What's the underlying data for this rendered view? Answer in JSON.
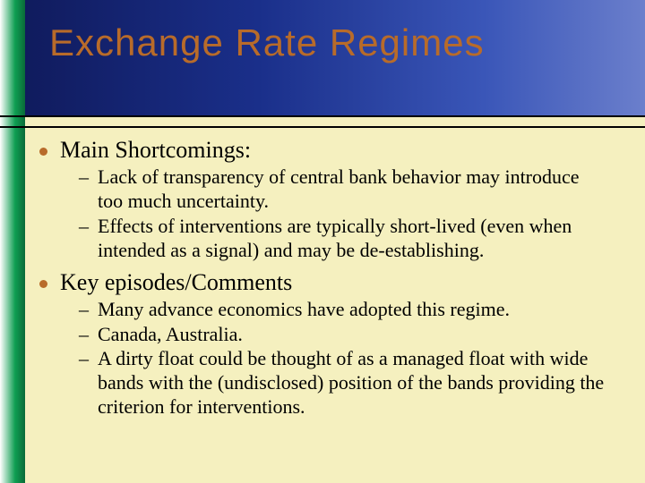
{
  "title": "Exchange Rate Regimes",
  "colors": {
    "accent": "#b86b2a",
    "content_bg": "#f5f0bf",
    "title_gradient_start": "#0f1959",
    "title_gradient_end": "#6b7fcc",
    "sidebar_gradient_mid": "#0f9e52"
  },
  "bullets": [
    {
      "label": "Main Shortcomings:",
      "subs": [
        "Lack of transparency of central bank behavior may introduce too much uncertainty.",
        "Effects of interventions are typically short-lived (even when intended as a signal) and may be de-establishing."
      ]
    },
    {
      "label": "Key episodes/Comments",
      "subs": [
        "Many advance economics have adopted this regime.",
        "Canada, Australia.",
        "A dirty float could be thought of as a managed float with wide bands with the (undisclosed) position of the bands providing the criterion for interventions."
      ]
    }
  ]
}
